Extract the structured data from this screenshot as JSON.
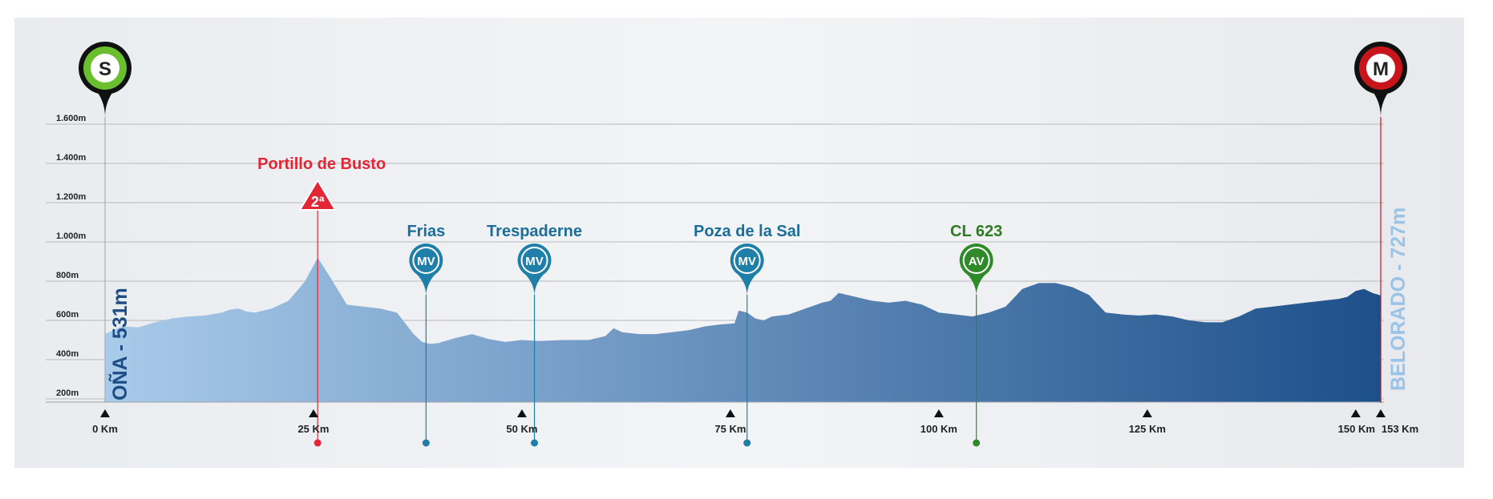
{
  "colors": {
    "profile_light": "#a9cbea",
    "profile_dark": "#1d4f8a",
    "gridline": "#b9b9b9",
    "start_pin": "#6abf2e",
    "finish_pin": "#c8151b",
    "climb_red": "#e32636",
    "mv_blue": "#1f7fa8",
    "av_green": "#2f8a2a",
    "start_label": "#1e4d86",
    "finish_label": "#9ac3e8"
  },
  "start": {
    "badge": "S",
    "label": "OÑA - 531m",
    "km": 0,
    "icon": "green-map-pin-icon"
  },
  "finish": {
    "badge": "M",
    "label": "BELORADO - 727m",
    "km": 153,
    "icon": "red-map-pin-icon"
  },
  "chart_data": {
    "type": "area",
    "title": "",
    "xlabel": "",
    "ylabel": "",
    "xlim": [
      0,
      153
    ],
    "ylim": [
      150,
      1600
    ],
    "y_ticks": [
      {
        "value": 200,
        "label": "200m"
      },
      {
        "value": 400,
        "label": "400m"
      },
      {
        "value": 600,
        "label": "600m"
      },
      {
        "value": 800,
        "label": "800m"
      },
      {
        "value": 1000,
        "label": "1.000m"
      },
      {
        "value": 1200,
        "label": "1.200m"
      },
      {
        "value": 1400,
        "label": "1.400m"
      },
      {
        "value": 1600,
        "label": "1.600m"
      }
    ],
    "x_ticks": [
      {
        "value": 0,
        "label": "0 Km"
      },
      {
        "value": 25,
        "label": "25 Km"
      },
      {
        "value": 50,
        "label": "50 Km"
      },
      {
        "value": 75,
        "label": "75 Km"
      },
      {
        "value": 100,
        "label": "100 Km"
      },
      {
        "value": 125,
        "label": "125 Km"
      },
      {
        "value": 150,
        "label": "150  Km"
      },
      {
        "value": 153,
        "label": "153 Km"
      }
    ],
    "series": [
      {
        "x": [
          0,
          1,
          2,
          4,
          6,
          8,
          10,
          12,
          14,
          15,
          16,
          17,
          18,
          20,
          22,
          24,
          25.5,
          27,
          29,
          31,
          33,
          35,
          37,
          38,
          39,
          40,
          42,
          44,
          46,
          48,
          50,
          52,
          55,
          58,
          60,
          61,
          62,
          64,
          66,
          68,
          70,
          72,
          74,
          75.5,
          76,
          77,
          78,
          79,
          80,
          82,
          84,
          86,
          87,
          88,
          90,
          92,
          94,
          96,
          98,
          100,
          102,
          104,
          106,
          108,
          110,
          112,
          114,
          116,
          118,
          120,
          122,
          124,
          126,
          128,
          130,
          132,
          134,
          136,
          138,
          140,
          142,
          144,
          146,
          148,
          149,
          150,
          151,
          152,
          153
        ],
        "y": [
          531,
          550,
          570,
          565,
          590,
          610,
          620,
          625,
          640,
          655,
          660,
          645,
          640,
          660,
          700,
          800,
          920,
          820,
          680,
          670,
          660,
          640,
          530,
          490,
          480,
          485,
          510,
          530,
          505,
          490,
          500,
          495,
          500,
          500,
          520,
          560,
          540,
          530,
          530,
          540,
          550,
          570,
          580,
          585,
          650,
          640,
          610,
          600,
          620,
          630,
          660,
          690,
          700,
          740,
          720,
          700,
          690,
          700,
          680,
          640,
          630,
          620,
          640,
          670,
          760,
          790,
          790,
          770,
          730,
          640,
          630,
          625,
          630,
          620,
          600,
          590,
          590,
          620,
          660,
          670,
          680,
          690,
          700,
          710,
          720,
          750,
          760,
          740,
          727
        ]
      }
    ],
    "markers": [
      {
        "name": "Portillo de Busto",
        "km": 25.5,
        "type": "climb",
        "badge": "2ª",
        "icon": "climb-category-2-icon"
      },
      {
        "name": "Frias",
        "km": 38.5,
        "type": "MV",
        "badge": "MV",
        "icon": "mv-map-pin-icon"
      },
      {
        "name": "Trespaderne",
        "km": 51.5,
        "type": "MV",
        "badge": "MV",
        "icon": "mv-map-pin-icon"
      },
      {
        "name": "Poza de la Sal",
        "km": 77,
        "type": "MV",
        "badge": "MV",
        "icon": "mv-map-pin-icon"
      },
      {
        "name": "CL 623",
        "km": 104.5,
        "type": "AV",
        "badge": "AV",
        "icon": "av-map-pin-icon"
      }
    ]
  }
}
